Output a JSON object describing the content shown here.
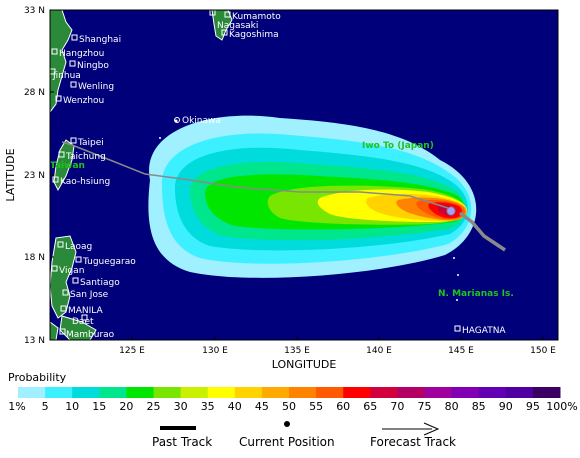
{
  "map": {
    "x_axis_title": "LONGITUDE",
    "y_axis_title": "LATITUDE",
    "lon_ticks": [
      "125 E",
      "130 E",
      "135 E",
      "140 E",
      "145 E",
      "150 E"
    ],
    "lat_ticks": [
      "33 N",
      "28 N",
      "23 N",
      "18 N",
      "13 N"
    ],
    "cities": [
      {
        "name": "Kumamoto"
      },
      {
        "name": "Nagasaki"
      },
      {
        "name": "Kagoshima"
      },
      {
        "name": "Shanghai"
      },
      {
        "name": "Hangzhou"
      },
      {
        "name": "Ningbo"
      },
      {
        "name": "Jinhua"
      },
      {
        "name": "Wenling"
      },
      {
        "name": "Wenzhou"
      },
      {
        "name": "Okinawa"
      },
      {
        "name": "Taipei"
      },
      {
        "name": "Taichung"
      },
      {
        "name": "Kao-hsiung"
      },
      {
        "name": "Laoag"
      },
      {
        "name": "Tuguegarao"
      },
      {
        "name": "Vigan"
      },
      {
        "name": "Santiago"
      },
      {
        "name": "San Jose"
      },
      {
        "name": "MANILA"
      },
      {
        "name": "Daet"
      },
      {
        "name": "Mamburao"
      },
      {
        "name": "HAGATNA"
      }
    ],
    "regions": [
      "Iwo To (Japan)",
      "Taiwan",
      "N. Marianas Is."
    ],
    "colors": {
      "ocean": "#00007a",
      "land": "#2a8a3a",
      "border": "#ffffff",
      "track_past": "#000000",
      "track_forecast": "#808080"
    }
  },
  "legend": {
    "title": "Probability",
    "labels": [
      "1%",
      "5",
      "10",
      "15",
      "20",
      "25",
      "30",
      "35",
      "40",
      "45",
      "50",
      "55",
      "60",
      "65",
      "70",
      "75",
      "80",
      "85",
      "90",
      "95",
      "100%"
    ],
    "colors": [
      "#a0f0ff",
      "#3cf0ff",
      "#00dcdc",
      "#00e68c",
      "#00e600",
      "#78e600",
      "#c8f000",
      "#ffff00",
      "#ffd200",
      "#ffaa00",
      "#ff8200",
      "#ff5a00",
      "#ff0000",
      "#d2003c",
      "#b40064",
      "#a000a0",
      "#8200b4",
      "#6400b4",
      "#5000a0",
      "#3c0064"
    ],
    "track_keys": {
      "past": "Past Track",
      "current": "Current Position",
      "forecast": "Forecast Track"
    }
  }
}
